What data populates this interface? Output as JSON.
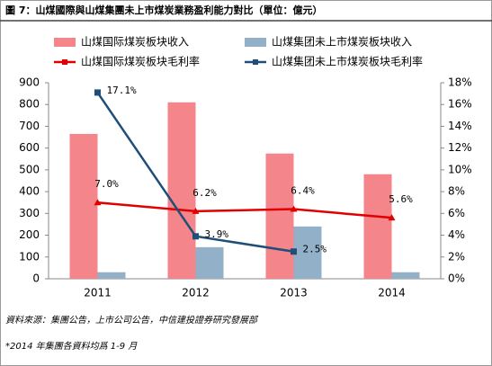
{
  "chart_data": {
    "type": "bar_line",
    "title": "圖 7：山煤國際與山煤集團未上市煤炭業務盈利能力對比（單位：億元）",
    "categories": [
      "2011",
      "2012",
      "2013",
      "2014"
    ],
    "series": [
      {
        "name": "山煤国际煤炭板块收入",
        "type": "bar",
        "color": "#f4858a",
        "values": [
          665,
          810,
          575,
          480
        ]
      },
      {
        "name": "山煤集团未上市煤炭板块收入",
        "type": "bar",
        "color": "#92b0c8",
        "values": [
          30,
          145,
          240,
          30
        ]
      },
      {
        "name": "山煤国际煤炭板块毛利率",
        "type": "line",
        "axis": "y2",
        "color": "#e00000",
        "values": [
          7.0,
          6.2,
          6.4,
          5.6
        ],
        "value_labels": [
          "7.0%",
          "6.2%",
          "6.4%",
          "5.6%"
        ]
      },
      {
        "name": "山煤集团未上市煤炭板块毛利率",
        "type": "line",
        "axis": "y2",
        "color": "#1f4e79",
        "values": [
          17.1,
          3.9,
          2.5,
          null
        ],
        "value_labels": [
          "17.1%",
          "3.9%",
          "2.5%",
          null
        ]
      }
    ],
    "ylim": [
      0,
      900
    ],
    "yticks": [
      0,
      100,
      200,
      300,
      400,
      500,
      600,
      700,
      800,
      900
    ],
    "y2lim": [
      0,
      18
    ],
    "y2ticks": [
      {
        "value": 0,
        "label": "0%"
      },
      {
        "value": 2,
        "label": "2%"
      },
      {
        "value": 4,
        "label": "4%"
      },
      {
        "value": 6,
        "label": "6%"
      },
      {
        "value": 8,
        "label": "8%"
      },
      {
        "value": 10,
        "label": "10%"
      },
      {
        "value": 12,
        "label": "12%"
      },
      {
        "value": 14,
        "label": "14%"
      },
      {
        "value": 16,
        "label": "16%"
      },
      {
        "value": 18,
        "label": "18%"
      }
    ],
    "grid": false,
    "notes": [
      "資料來源：集團公告，上市公司公告，中信建投證券研究發展部",
      "*2014 年集團各資料均爲 1-9 月"
    ]
  }
}
